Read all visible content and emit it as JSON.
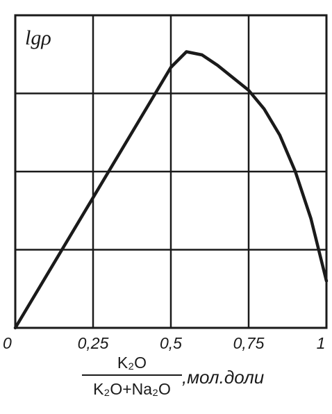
{
  "chart_data": {
    "type": "line",
    "title": "",
    "ylabel": "lgρ",
    "xlabel": {
      "numerator": "K₂O",
      "denominator": "K₂O+Na₂O",
      "unit": ",мол.доли"
    },
    "xlim": [
      0,
      1
    ],
    "x_ticks": [
      0,
      0.25,
      0.5,
      0.75,
      1
    ],
    "x_tick_labels": [
      "0",
      "0,25",
      "0,5",
      "0,75",
      "1"
    ],
    "grid": true,
    "series": [
      {
        "x": [
          0,
          0.1,
          0.2,
          0.3,
          0.4,
          0.5,
          0.55,
          0.6,
          0.65,
          0.7,
          0.75,
          0.8,
          0.85,
          0.9,
          0.95,
          1.0
        ],
        "y": [
          0,
          0.5,
          1.0,
          1.5,
          2.0,
          2.5,
          2.65,
          2.62,
          2.52,
          2.4,
          2.28,
          2.1,
          1.85,
          1.5,
          1.05,
          0.45
        ]
      }
    ],
    "ylim": [
      0,
      3
    ]
  }
}
